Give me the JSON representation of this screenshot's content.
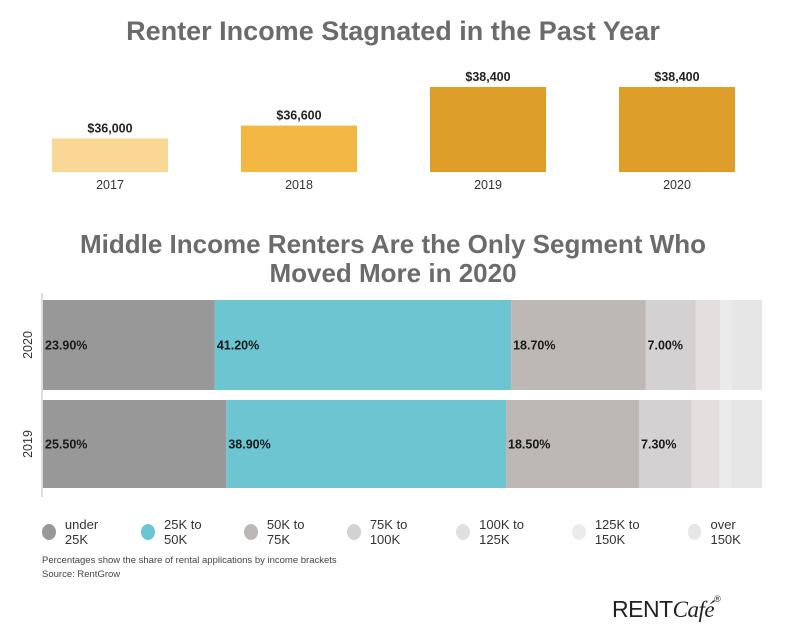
{
  "title_top": "Renter Income Stagnated in the Past Year",
  "title_bottom": "Middle Income Renters Are the Only Segment Who Moved More in 2020",
  "chart_data": [
    {
      "type": "bar",
      "title": "Renter Income Stagnated in the Past Year",
      "categories": [
        "2017",
        "2018",
        "2019",
        "2020"
      ],
      "values": [
        36000,
        36600,
        38400,
        38400
      ],
      "labels": [
        "$36,000",
        "$36,600",
        "$38,400",
        "$38,400"
      ],
      "colors": [
        "#f9d895",
        "#f2b843",
        "#dd9f2a",
        "#dd9f2a"
      ]
    },
    {
      "type": "bar",
      "orientation": "horizontal",
      "stacked": true,
      "title": "Middle Income Renters Are the Only Segment Who Moved More in 2020",
      "categories": [
        "2020",
        "2019"
      ],
      "series": [
        {
          "name": "under 25K",
          "color": "#989898",
          "values": [
            23.9,
            25.5
          ],
          "labels": [
            "23.90%",
            "25.50%"
          ]
        },
        {
          "name": "25K to 50K",
          "color": "#6cc5d1",
          "values": [
            41.2,
            38.9
          ],
          "labels": [
            "41.20%",
            "38.90%"
          ]
        },
        {
          "name": "50K to 75K",
          "color": "#bdb8b6",
          "values": [
            18.7,
            18.5
          ],
          "labels": [
            "18.70%",
            "18.50%"
          ]
        },
        {
          "name": "75K to 100K",
          "color": "#d3d1d1",
          "values": [
            7.0,
            7.3
          ],
          "labels": [
            "7.00%",
            "7.30%"
          ]
        },
        {
          "name": "100K to 125K",
          "color": "#e3dfdf",
          "values": [
            3.4,
            3.9
          ]
        },
        {
          "name": "125K to 150K",
          "color": "#ebebeb",
          "values": [
            1.6,
            1.6
          ]
        },
        {
          "name": "over 150K",
          "color": "#e6e6e6",
          "values": [
            4.2,
            4.3
          ]
        }
      ]
    }
  ],
  "footnote": "Percentages show the share of rental applications by income brackets",
  "source": "Source: RentGrow",
  "logo": {
    "main": "RENT",
    "accent": "Café",
    "mark": "®"
  }
}
